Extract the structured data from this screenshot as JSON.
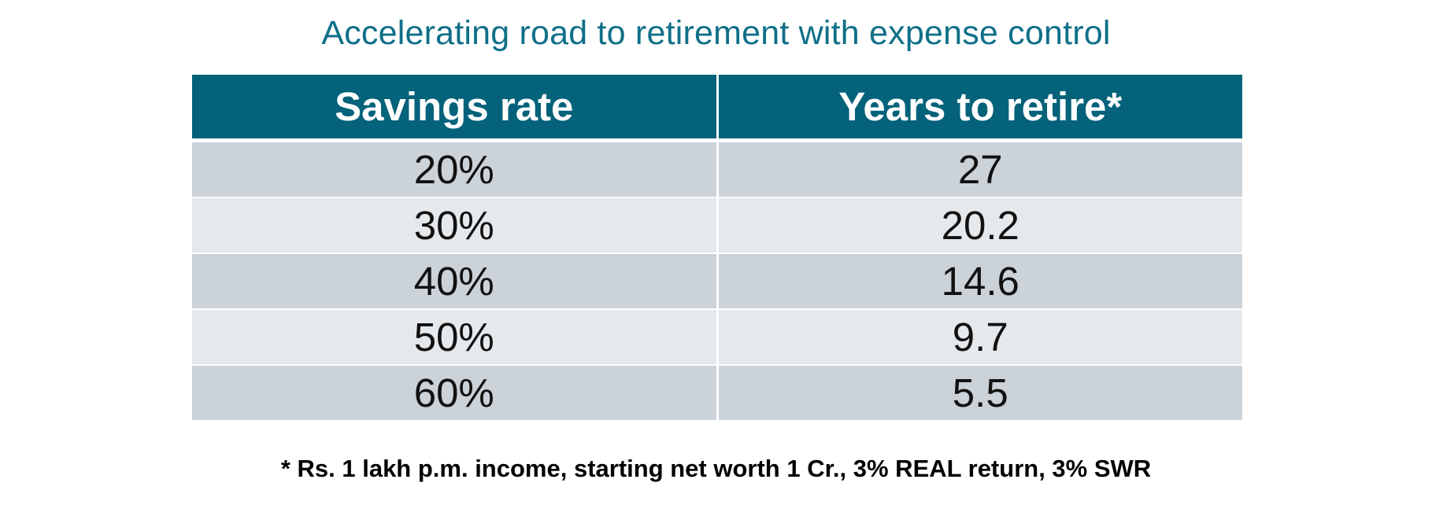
{
  "chart_data": {
    "type": "table",
    "title": "Accelerating road to retirement with expense control",
    "columns": [
      "Savings rate",
      "Years to retire*"
    ],
    "rows": [
      [
        "20%",
        "27"
      ],
      [
        "30%",
        "20.2"
      ],
      [
        "40%",
        "14.6"
      ],
      [
        "50%",
        "9.7"
      ],
      [
        "60%",
        "5.5"
      ]
    ],
    "footnote": "* Rs. 1 lakh p.m. income, starting net worth 1 Cr., 3% REAL return, 3% SWR"
  },
  "colors": {
    "title": "#0f6f88",
    "header_bg": "#04627a",
    "row_dark": "#cbd2d8",
    "row_light": "#e6e9ec"
  }
}
